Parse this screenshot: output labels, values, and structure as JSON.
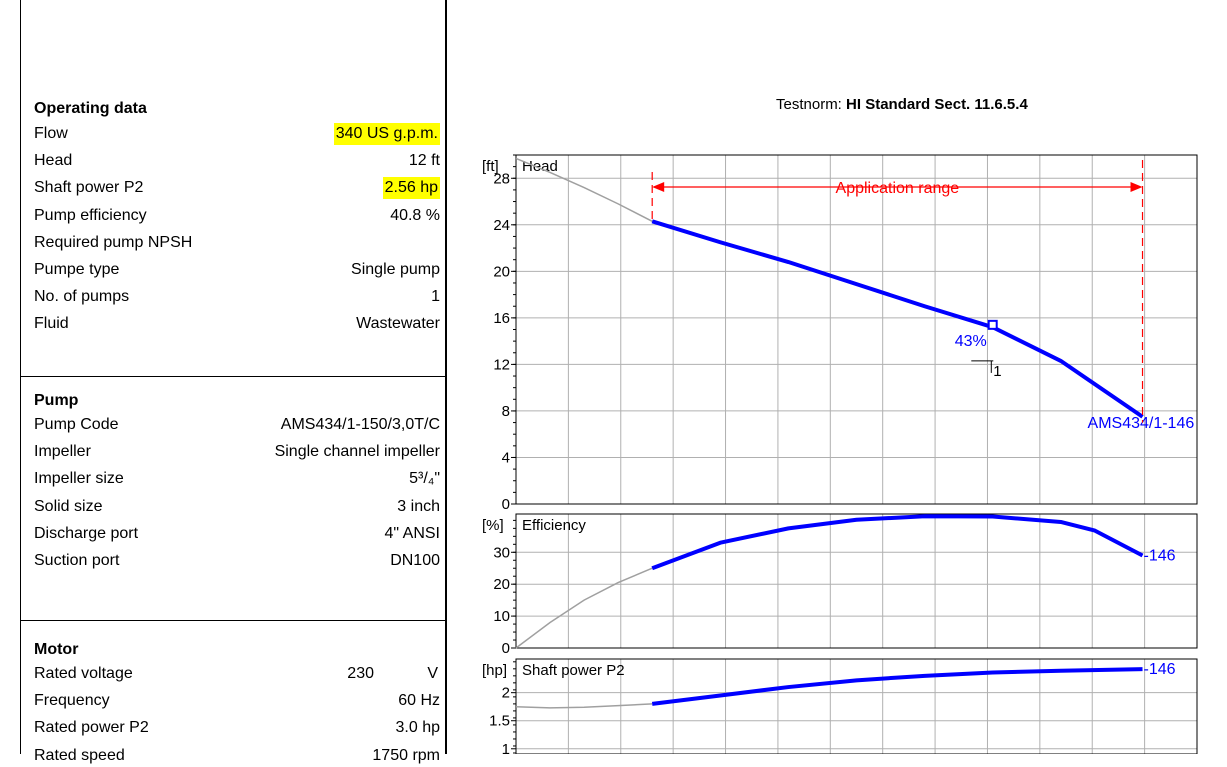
{
  "operating": {
    "title": "Operating data",
    "rows": [
      {
        "label": "Flow",
        "value": "340 US g.p.m.",
        "highlight": true
      },
      {
        "label": "Head",
        "value": "12 ft",
        "highlight": false
      },
      {
        "label": "Shaft power P2",
        "value": "2.56 hp",
        "highlight": true
      },
      {
        "label": "Pump efficiency",
        "value": "40.8 %",
        "highlight": false
      },
      {
        "label": "Required pump NPSH",
        "value": "",
        "highlight": false
      },
      {
        "label": "Pumpe type",
        "value": "Single pump",
        "highlight": false
      },
      {
        "label": "No. of pumps",
        "value": "1",
        "highlight": false
      },
      {
        "label": "Fluid",
        "value": "Wastewater",
        "highlight": false
      }
    ]
  },
  "pump": {
    "title": "Pump",
    "rows": [
      {
        "label": "Pump Code",
        "value": "AMS434/1-150/3,0T/C"
      },
      {
        "label": "Impeller",
        "value": "Single channel impeller"
      },
      {
        "label": "Impeller size",
        "value": "5³/₄\""
      },
      {
        "label": "Solid size",
        "value": "3 inch"
      },
      {
        "label": "Discharge port",
        "value": "4\" ANSI"
      },
      {
        "label": "Suction port",
        "value": "DN100"
      }
    ]
  },
  "motor": {
    "title": "Motor",
    "rows": [
      {
        "label": "Rated voltage",
        "number": "230",
        "unit": "V"
      },
      {
        "label": "Frequency",
        "value": "60 Hz"
      },
      {
        "label": "Rated power P2",
        "value": "3.0 hp"
      },
      {
        "label": "Rated speed",
        "value": "1750 rpm"
      }
    ]
  },
  "testnorm": {
    "label": "Testnorm:",
    "value": "HI Standard Sect. 11.6.5.4"
  },
  "colors": {
    "curve": "#0000ff",
    "extension": "#a0a0a0",
    "range": "#ff0000",
    "grid": "#b0b0b0",
    "highlight": "#ffff00"
  },
  "chart_data": [
    {
      "type": "line",
      "title": "Head",
      "ylabel": "[ft]",
      "ylim": [
        0,
        30
      ],
      "yticks": [
        0,
        4,
        8,
        12,
        16,
        20,
        24,
        28
      ],
      "x_relative": true,
      "series": [
        {
          "name": "AMS434/1-146",
          "x": [
            0.2,
            0.3,
            0.4,
            0.5,
            0.6,
            0.7,
            0.8,
            0.92
          ],
          "y": [
            24.3,
            22.5,
            20.8,
            18.9,
            17.0,
            15.2,
            12.3,
            7.5
          ]
        }
      ],
      "extension": {
        "x": [
          0,
          0.05,
          0.1,
          0.15,
          0.2
        ],
        "y": [
          29.7,
          28.5,
          27.2,
          25.8,
          24.3
        ]
      },
      "operating_point": {
        "x": 0.7,
        "y": 15.4,
        "label": "43%"
      },
      "marker_label": "1",
      "application_range": {
        "label": "Application range",
        "x": [
          0.2,
          0.92
        ]
      }
    },
    {
      "type": "line",
      "title": "Efficiency",
      "ylabel": "[%]",
      "ylim": [
        0,
        42
      ],
      "yticks": [
        0,
        10,
        20,
        30
      ],
      "x_relative": true,
      "series": [
        {
          "name": "-146",
          "x": [
            0.2,
            0.3,
            0.4,
            0.5,
            0.6,
            0.7,
            0.8,
            0.85,
            0.92
          ],
          "y": [
            25,
            33,
            37.5,
            40.2,
            41.3,
            41.2,
            39.5,
            36.8,
            29
          ]
        }
      ],
      "extension": {
        "x": [
          0,
          0.05,
          0.1,
          0.15,
          0.2
        ],
        "y": [
          0,
          8,
          15,
          20.5,
          25
        ]
      }
    },
    {
      "type": "line",
      "title": "Shaft power P2",
      "ylabel": "[hp]",
      "ylim": [
        0.8,
        2.6
      ],
      "yticks": [
        1,
        1.5,
        2
      ],
      "x_relative": true,
      "series": [
        {
          "name": "-146",
          "x": [
            0.2,
            0.3,
            0.4,
            0.5,
            0.6,
            0.7,
            0.8,
            0.92
          ],
          "y": [
            1.8,
            1.95,
            2.1,
            2.22,
            2.3,
            2.36,
            2.39,
            2.42
          ]
        }
      ],
      "extension": {
        "x": [
          0,
          0.05,
          0.1,
          0.15,
          0.2
        ],
        "y": [
          1.75,
          1.73,
          1.74,
          1.77,
          1.8
        ]
      }
    }
  ]
}
